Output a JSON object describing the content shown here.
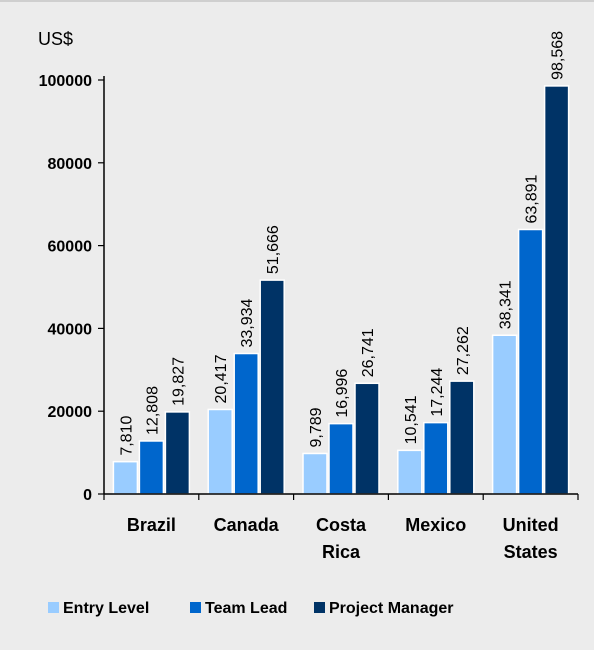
{
  "chart_data": {
    "type": "bar",
    "unit_label": "US$",
    "categories": [
      [
        "Brazil"
      ],
      [
        "Canada"
      ],
      [
        "Costa",
        "Rica"
      ],
      [
        "Mexico"
      ],
      [
        "United",
        "States"
      ]
    ],
    "series": [
      {
        "name": "Entry Level",
        "values": [
          7810,
          20417,
          9789,
          10541,
          38341
        ],
        "labels": [
          "7,810",
          "20,417",
          "9,789",
          "10,541",
          "38,341"
        ]
      },
      {
        "name": "Team Lead",
        "values": [
          12808,
          33934,
          16996,
          17244,
          63891
        ],
        "labels": [
          "12,808",
          "33,934",
          "16,996",
          "17,244",
          "63,891"
        ]
      },
      {
        "name": "Project Manager",
        "values": [
          19827,
          51666,
          26741,
          27262,
          98568
        ],
        "labels": [
          "19,827",
          "51,666",
          "26,741",
          "27,262",
          "98,568"
        ]
      }
    ],
    "yticks": [
      "0",
      "20000",
      "40000",
      "60000",
      "80000",
      "100000"
    ],
    "ylim": [
      0,
      100000
    ],
    "grid": false,
    "legend_position": "bottom"
  },
  "colors": {
    "entry_level": "#99ccff",
    "team_lead": "#0066cc",
    "project_manager": "#003366",
    "axis": "#000000",
    "bar_outline": "#ffffff"
  }
}
